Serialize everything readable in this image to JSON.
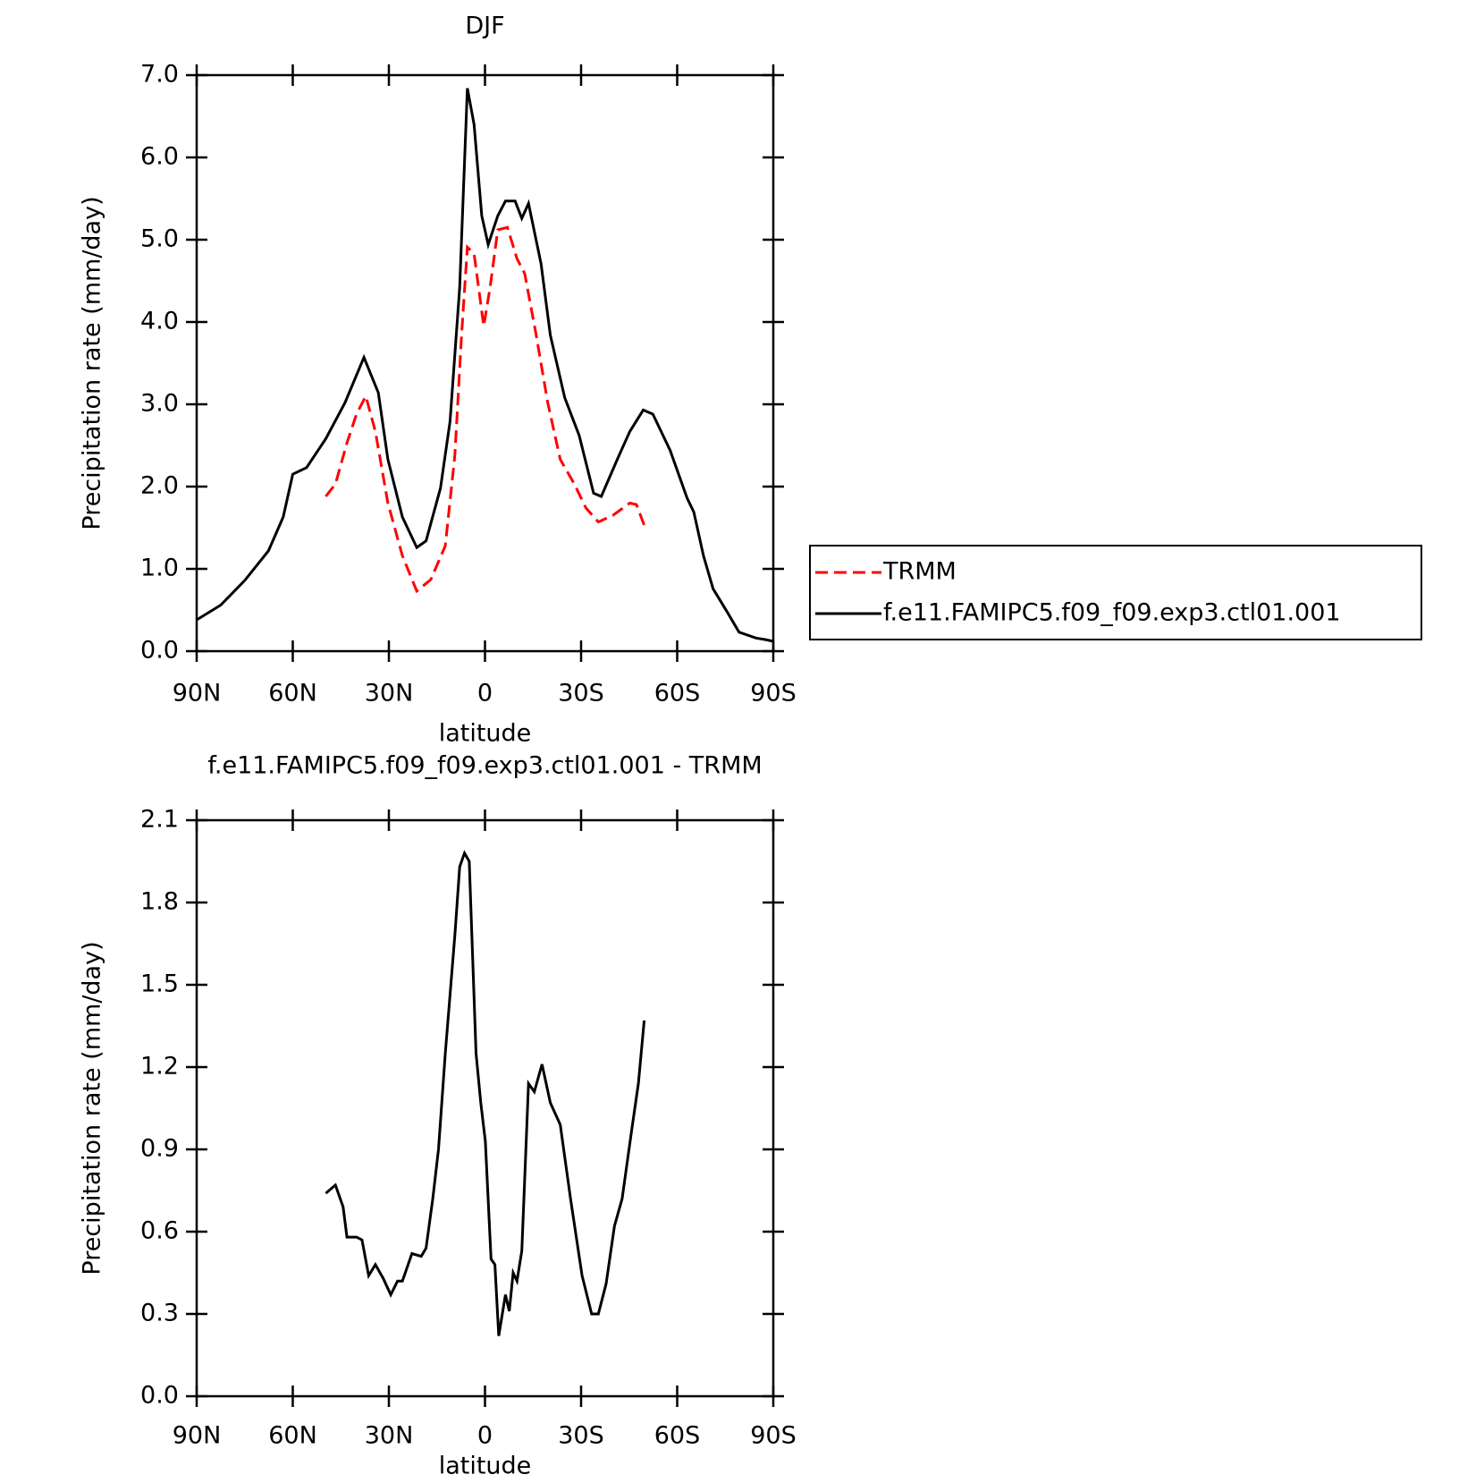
{
  "chart_data": [
    {
      "type": "line",
      "title": "DJF",
      "xlabel": "latitude",
      "ylabel": "Precipitation rate (mm/day)",
      "xlim": [
        90,
        -90
      ],
      "xticks": [
        {
          "value": 90,
          "label": "90N"
        },
        {
          "value": 60,
          "label": "60N"
        },
        {
          "value": 30,
          "label": "30N"
        },
        0,
        {
          "value": -30,
          "label": "30S"
        },
        {
          "value": -60,
          "label": "60S"
        },
        {
          "value": -90,
          "label": "90S"
        }
      ],
      "ylim": [
        0,
        7
      ],
      "yticks": [
        {
          "value": 0,
          "label": "0.0"
        },
        {
          "value": 1,
          "label": "1.0"
        },
        {
          "value": 2,
          "label": "2.0"
        },
        {
          "value": 3,
          "label": "3.0"
        },
        {
          "value": 4,
          "label": "4.0"
        },
        {
          "value": 5,
          "label": "5.0"
        },
        {
          "value": 6,
          "label": "6.0"
        },
        {
          "value": 7,
          "label": "7.0"
        }
      ],
      "legend": "right",
      "series": [
        {
          "name": "TRMM",
          "color": "#ff0000",
          "dash": true,
          "x": [
            49.7,
            46.7,
            43.1,
            40.1,
            37.2,
            34.2,
            30.3,
            25.8,
            21.3,
            16.9,
            12.4,
            9.4,
            7.3,
            5.5,
            3.4,
            0.4,
            -1.6,
            -4.0,
            -7.0,
            -10.0,
            -12.4,
            -16.0,
            -19.6,
            -23.5,
            -27.9,
            -31.5,
            -35.4,
            -39.9,
            -45.2,
            -47.3,
            -49.7
          ],
          "values": [
            1.88,
            2.03,
            2.53,
            2.88,
            3.1,
            2.67,
            1.8,
            1.16,
            0.73,
            0.87,
            1.28,
            2.38,
            3.84,
            4.91,
            4.83,
            3.95,
            4.42,
            5.12,
            5.15,
            4.77,
            4.59,
            3.84,
            3.02,
            2.33,
            2.03,
            1.74,
            1.57,
            1.65,
            1.8,
            1.78,
            1.53
          ]
        },
        {
          "name": "f.e11.FAMIPC5.f09_f09.exp3.ctl01.001",
          "color": "#000000",
          "dash": false,
          "x": [
            90,
            82.5,
            75,
            67.6,
            63,
            60,
            55.7,
            49.7,
            43.7,
            37.8,
            33.3,
            30.3,
            25.8,
            21.3,
            18.4,
            13.9,
            10.9,
            7.9,
            5.5,
            3.4,
            1.0,
            -1.0,
            -4.0,
            -6.4,
            -9.4,
            -11.5,
            -13.6,
            -17.5,
            -20.4,
            -24.9,
            -29.4,
            -33.9,
            -36.3,
            -41.3,
            -45.2,
            -49.4,
            -52.4,
            -57.8,
            -63.1,
            -65.2,
            -68.2,
            -71.2,
            -75.7,
            -79.3,
            -84.6,
            -87.6,
            -90
          ],
          "values": [
            0.38,
            0.56,
            0.86,
            1.22,
            1.63,
            2.15,
            2.23,
            2.58,
            3.02,
            3.57,
            3.14,
            2.33,
            1.63,
            1.26,
            1.34,
            1.98,
            2.79,
            4.42,
            6.84,
            6.4,
            5.29,
            4.94,
            5.29,
            5.47,
            5.47,
            5.26,
            5.44,
            4.71,
            3.84,
            3.08,
            2.62,
            1.92,
            1.88,
            2.33,
            2.67,
            2.93,
            2.88,
            2.44,
            1.86,
            1.69,
            1.16,
            0.76,
            0.47,
            0.23,
            0.16,
            0.14,
            0.12
          ]
        }
      ]
    },
    {
      "type": "line",
      "title": "f.e11.FAMIPC5.f09_f09.exp3.ctl01.001 - TRMM",
      "xlabel": "latitude",
      "ylabel": "Precipitation rate (mm/day)",
      "xlim": [
        90,
        -90
      ],
      "xticks": [
        {
          "value": 90,
          "label": "90N"
        },
        {
          "value": 60,
          "label": "60N"
        },
        {
          "value": 30,
          "label": "30N"
        },
        0,
        {
          "value": -30,
          "label": "30S"
        },
        {
          "value": -60,
          "label": "60S"
        },
        {
          "value": -90,
          "label": "90S"
        }
      ],
      "ylim": [
        0,
        2.1
      ],
      "yticks": [
        {
          "value": 0,
          "label": "0.0"
        },
        0.3,
        0.6,
        0.9,
        1.2,
        1.5,
        1.8,
        2.1
      ],
      "color": "#000000",
      "x": [
        49.7,
        46.7,
        44.3,
        43.1,
        40.1,
        38.4,
        36.3,
        34.2,
        31.8,
        29.4,
        27.3,
        25.8,
        22.8,
        19.9,
        18.4,
        16.3,
        14.5,
        12.4,
        9.4,
        7.9,
        6.4,
        4.9,
        2.8,
        1.3,
        -0.1,
        -1.9,
        -3.1,
        -4.3,
        -6.4,
        -7.6,
        -8.8,
        -10.0,
        -11.5,
        -13.6,
        -15.4,
        -17.8,
        -20.4,
        -23.5,
        -26.7,
        -30.3,
        -33.3,
        -35.4,
        -37.8,
        -40.4,
        -42.8,
        -45.8,
        -47.9,
        -49.7
      ],
      "values": [
        0.74,
        0.77,
        0.69,
        0.58,
        0.58,
        0.57,
        0.44,
        0.48,
        0.43,
        0.37,
        0.42,
        0.42,
        0.52,
        0.51,
        0.54,
        0.72,
        0.9,
        1.25,
        1.68,
        1.93,
        1.98,
        1.95,
        1.25,
        1.07,
        0.93,
        0.5,
        0.48,
        0.22,
        0.37,
        0.31,
        0.45,
        0.42,
        0.53,
        1.14,
        1.11,
        1.21,
        1.07,
        0.99,
        0.72,
        0.44,
        0.3,
        0.3,
        0.41,
        0.62,
        0.72,
        0.97,
        1.14,
        1.37
      ]
    }
  ]
}
